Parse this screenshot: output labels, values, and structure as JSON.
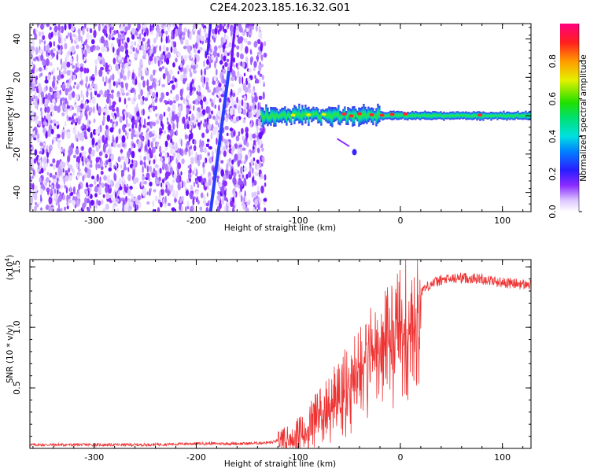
{
  "title": "C2E4.2023.185.16.32.G01",
  "chart_data": [
    {
      "type": "heatmap",
      "xlabel": "Height of straight line (km)",
      "ylabel": "Frequency (Hz)",
      "xlim": [
        -363,
        128
      ],
      "ylim": [
        -50,
        48
      ],
      "xticks": [
        -300,
        -200,
        -100,
        0,
        100
      ],
      "xtick_labels": [
        "-300",
        "-200",
        "-100",
        "0",
        "100"
      ],
      "yticks": [
        -40,
        -20,
        0,
        20,
        40
      ],
      "ytick_labels": [
        "-40",
        "-20",
        "0",
        "20",
        "40"
      ],
      "grid": false,
      "colorbar": {
        "label": "Normalized spectral amplitude",
        "range": [
          0,
          1
        ],
        "ticks": [
          0.0,
          0.2,
          0.4,
          0.6,
          0.8
        ],
        "tick_labels": [
          "0.0",
          "0.2",
          "0.4",
          "0.6",
          "0.8"
        ],
        "colormap": "rainbow"
      },
      "features": {
        "noise_region_x": [
          -363,
          -137
        ],
        "diagonal_track": {
          "x_at_top": -183,
          "x_at_bottom": -186,
          "x_at_top_right": -168
        },
        "signal_band": {
          "x_start": -137,
          "x_end": 128,
          "freq": 0
        }
      }
    },
    {
      "type": "line",
      "xlabel": "Height of straight line (km)",
      "ylabel": "SNR (10 * v/v)",
      "y_multiplier_label": "(x10",
      "y_multiplier_exp": "4",
      "y_multiplier_close": ")",
      "xlim": [
        -363,
        128
      ],
      "ylim": [
        0,
        1.56
      ],
      "xticks": [
        -300,
        -200,
        -100,
        0,
        100
      ],
      "xtick_labels": [
        "-300",
        "-200",
        "-100",
        "0",
        "100"
      ],
      "yticks": [
        0.5,
        1.0,
        1.5
      ],
      "ytick_labels": [
        "0.5",
        "1.0",
        "1.5"
      ],
      "grid": false,
      "series": [
        {
          "color": "#ee3333",
          "x": [
            -363,
            -300,
            -250,
            -200,
            -150,
            -125,
            -110,
            -100,
            -90,
            -80,
            -70,
            -60,
            -50,
            -40,
            -30,
            -25,
            -20,
            -10,
            0,
            10,
            20,
            30,
            40,
            60,
            80,
            100,
            128
          ],
          "y": [
            0.03,
            0.03,
            0.03,
            0.04,
            0.04,
            0.05,
            0.1,
            0.14,
            0.2,
            0.32,
            0.4,
            0.5,
            0.6,
            0.7,
            0.85,
            0.88,
            0.95,
            1.0,
            1.1,
            1.2,
            1.3,
            1.36,
            1.39,
            1.41,
            1.4,
            1.37,
            1.35
          ]
        }
      ]
    }
  ]
}
